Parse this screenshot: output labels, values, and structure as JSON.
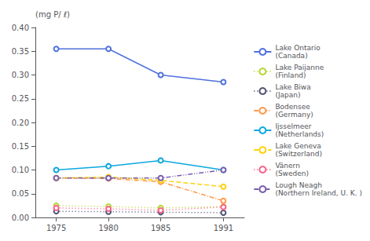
{
  "chart_data": {
    "type": "line",
    "ylabel": "(mg P/ ℓ)",
    "x": [
      1975,
      1980,
      1985,
      1991
    ],
    "xlim": [
      1973,
      1993
    ],
    "xticks": [
      1975,
      1980,
      1985,
      1991
    ],
    "ylim": [
      0.0,
      0.4
    ],
    "yticks": [
      {
        "value": 0.0,
        "label": "0.00"
      },
      {
        "value": 0.05,
        "label": "0.05"
      },
      {
        "value": 0.1,
        "label": "0.10"
      },
      {
        "value": 0.15,
        "label": "0.15"
      },
      {
        "value": 0.2,
        "label": "0.20"
      },
      {
        "value": 0.25,
        "label": "0.25"
      },
      {
        "value": 0.3,
        "label": "0.30"
      },
      {
        "value": 0.35,
        "label": "0.35"
      },
      {
        "value": 0.4,
        "label": "0.40"
      }
    ],
    "grid": false,
    "legend": "right",
    "series": [
      {
        "name": "Lake Ontario\n(Canada)",
        "values": [
          0.355,
          0.355,
          0.3,
          0.285
        ],
        "line_style": "solid"
      },
      {
        "name": "Lake Paijanne\n(Finland)",
        "values": [
          0.025,
          0.023,
          0.02,
          0.023
        ],
        "line_style": "dotted"
      },
      {
        "name": "Lake Biwa\n(Japan)",
        "values": [
          0.013,
          0.012,
          0.011,
          0.01
        ],
        "line_style": "dotted"
      },
      {
        "name": "Bodensee\n(Germany)",
        "values": [
          0.083,
          0.082,
          0.075,
          0.035
        ],
        "line_style": "dashdot"
      },
      {
        "name": "Ijsselmeer\n(Netherlands)",
        "values": [
          0.1,
          0.108,
          0.12,
          0.1
        ],
        "line_style": "solid"
      },
      {
        "name": "Lake Geneva\n(Switzerland)",
        "values": [
          0.083,
          0.085,
          0.078,
          0.065
        ],
        "line_style": "dashed"
      },
      {
        "name": "Vänern\n(Sweden)",
        "values": [
          0.02,
          0.018,
          0.015,
          0.022
        ],
        "line_style": "dotted"
      },
      {
        "name": "Lough Neagh\n(Northern Ireland, U. K. )",
        "values": [
          0.083,
          0.083,
          0.083,
          0.1
        ],
        "line_style": "dashdotdot"
      }
    ]
  }
}
